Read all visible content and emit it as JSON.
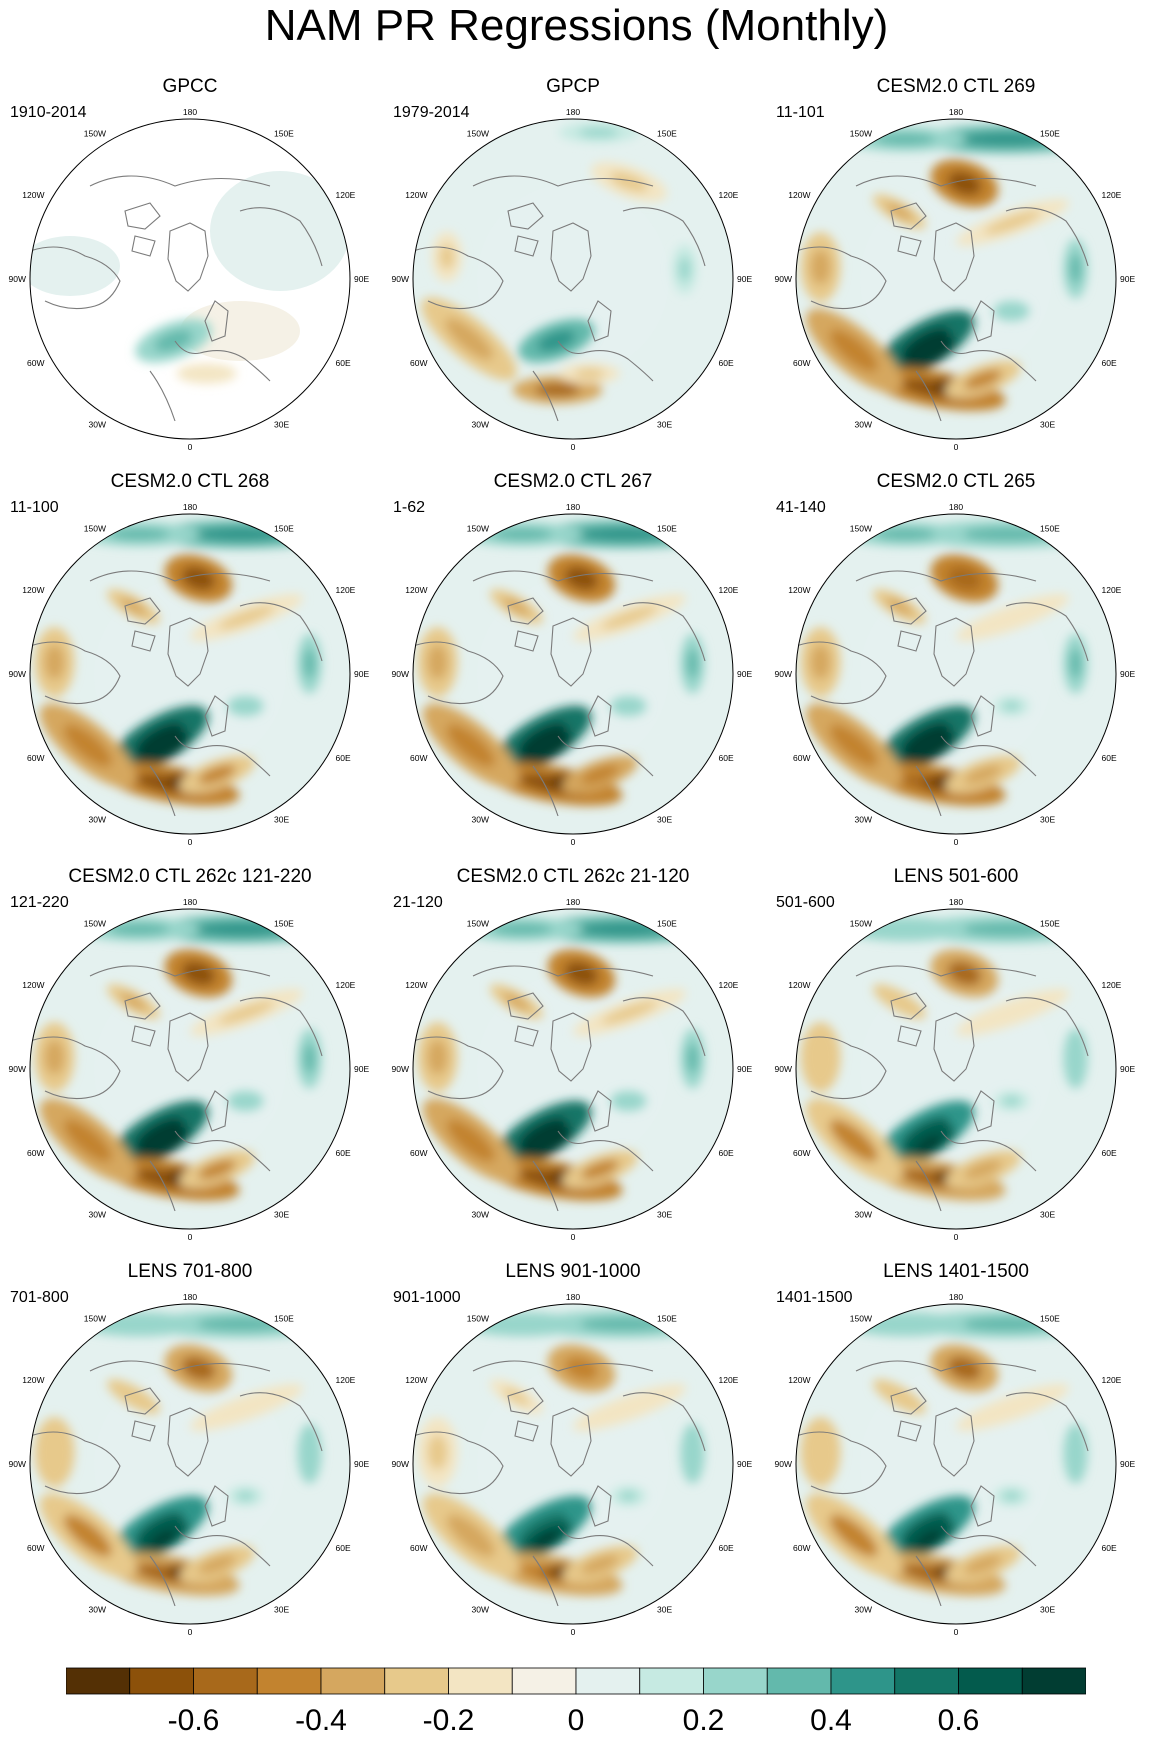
{
  "figure": {
    "title": "NAM PR Regressions (Monthly)"
  },
  "colors": {
    "levels": [
      "#543005",
      "#8c510a",
      "#a8691b",
      "#c2832f",
      "#d5a75f",
      "#e7c98b",
      "#f3e5c3",
      "#f5f1e6",
      "#e4f1ef",
      "#c6eae2",
      "#98d6cb",
      "#63b9ac",
      "#2e958a",
      "#137566",
      "#035b4d",
      "#013d32"
    ],
    "coast": "#7b7b7b",
    "no_data": "#ffffff"
  },
  "colorbar": {
    "labels": [
      "-0.6",
      "-0.4",
      "-0.2",
      "0",
      "0.2",
      "0.4",
      "0.6"
    ]
  },
  "map_labels": {
    "top": "180",
    "bottom": "0",
    "left": "90W",
    "right": "90E",
    "upper_left_1": "150W",
    "upper_left_2": "120W",
    "lower_left_1": "60W",
    "lower_left_2": "30W",
    "upper_right_1": "150E",
    "upper_right_2": "120E",
    "lower_right_1": "60E",
    "lower_right_2": "30E"
  },
  "panels": [
    {
      "title": "GPCC",
      "years": "1910-2014",
      "style": "obs-land",
      "strength": 0.55
    },
    {
      "title": "GPCP",
      "years": "1979-2014",
      "style": "obs",
      "strength": 0.8
    },
    {
      "title": "CESM2.0 CTL 269",
      "years": "11-101",
      "style": "model",
      "strength": 1.0
    },
    {
      "title": "CESM2.0 CTL 268",
      "years": "11-100",
      "style": "model",
      "strength": 1.0
    },
    {
      "title": "CESM2.0 CTL 267",
      "years": "1-62",
      "style": "model",
      "strength": 1.05
    },
    {
      "title": "CESM2.0 CTL 265",
      "years": "41-140",
      "style": "model",
      "strength": 0.95
    },
    {
      "title": "CESM2.0 CTL 262c 121-220",
      "years": "121-220",
      "style": "model",
      "strength": 1.0
    },
    {
      "title": "CESM2.0 CTL 262c 21-120",
      "years": "21-120",
      "style": "model",
      "strength": 1.0
    },
    {
      "title": "LENS 501-600",
      "years": "501-600",
      "style": "model",
      "strength": 0.85
    },
    {
      "title": "LENS 701-800",
      "years": "701-800",
      "style": "model",
      "strength": 0.85
    },
    {
      "title": "LENS 901-1000",
      "years": "901-1000",
      "style": "model",
      "strength": 0.8
    },
    {
      "title": "LENS 1401-1500",
      "years": "1401-1500",
      "style": "model",
      "strength": 0.85
    }
  ]
}
